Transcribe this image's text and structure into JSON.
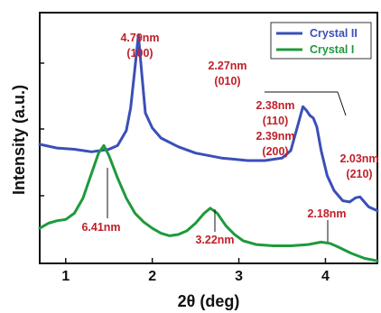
{
  "chart_data": {
    "type": "line",
    "title": "",
    "xlabel": "2θ (deg)",
    "ylabel": "Intensity (a.u.)",
    "xlim": [
      0.7,
      4.6
    ],
    "ylim": [
      0,
      1
    ],
    "x_ticks": [
      "1",
      "2",
      "3",
      "4"
    ],
    "x_tick_values": [
      1,
      2,
      3,
      4
    ],
    "grid": false,
    "legend_position": "top-right",
    "series": [
      {
        "name": "Crystal II",
        "color": "#3b4fb8",
        "x": [
          0.7,
          0.9,
          1.1,
          1.3,
          1.5,
          1.6,
          1.7,
          1.75,
          1.8,
          1.84,
          1.88,
          1.92,
          2.0,
          2.1,
          2.3,
          2.5,
          2.8,
          3.1,
          3.3,
          3.5,
          3.6,
          3.68,
          3.74,
          3.78,
          3.82,
          3.86,
          3.9,
          3.95,
          4.02,
          4.1,
          4.2,
          4.28,
          4.35,
          4.4,
          4.45,
          4.5,
          4.6
        ],
        "y": [
          0.475,
          0.46,
          0.455,
          0.445,
          0.455,
          0.47,
          0.53,
          0.62,
          0.78,
          0.91,
          0.75,
          0.6,
          0.54,
          0.5,
          0.465,
          0.44,
          0.42,
          0.41,
          0.41,
          0.42,
          0.45,
          0.55,
          0.625,
          0.61,
          0.59,
          0.58,
          0.545,
          0.45,
          0.35,
          0.29,
          0.25,
          0.245,
          0.262,
          0.265,
          0.245,
          0.225,
          0.21
        ]
      },
      {
        "name": "Crystal I",
        "color": "#1e9a3c",
        "x": [
          0.7,
          0.8,
          0.9,
          1.0,
          1.1,
          1.2,
          1.3,
          1.38,
          1.44,
          1.5,
          1.6,
          1.7,
          1.8,
          1.9,
          2.0,
          2.1,
          2.2,
          2.3,
          2.4,
          2.5,
          2.6,
          2.67,
          2.75,
          2.85,
          2.95,
          3.05,
          3.2,
          3.4,
          3.6,
          3.8,
          3.95,
          4.05,
          4.15,
          4.3,
          4.45,
          4.6
        ],
        "y": [
          0.14,
          0.16,
          0.17,
          0.175,
          0.2,
          0.26,
          0.36,
          0.44,
          0.47,
          0.43,
          0.34,
          0.26,
          0.2,
          0.165,
          0.14,
          0.12,
          0.11,
          0.115,
          0.13,
          0.16,
          0.2,
          0.22,
          0.2,
          0.15,
          0.115,
          0.09,
          0.075,
          0.07,
          0.07,
          0.075,
          0.085,
          0.08,
          0.065,
          0.04,
          0.02,
          0.01
        ]
      }
    ],
    "annotations": [
      {
        "id": "a1",
        "text": "4.79nm",
        "color": "#c0202a"
      },
      {
        "id": "a2",
        "text": "(100)",
        "color": "#c0202a"
      },
      {
        "id": "a3",
        "text": "2.27nm",
        "color": "#c0202a"
      },
      {
        "id": "a4",
        "text": "(010)",
        "color": "#c0202a"
      },
      {
        "id": "a5",
        "text": "2.38nm",
        "color": "#c0202a"
      },
      {
        "id": "a6",
        "text": "(110)",
        "color": "#c0202a"
      },
      {
        "id": "a7",
        "text": "2.39nm",
        "color": "#c0202a"
      },
      {
        "id": "a8",
        "text": "(200)",
        "color": "#c0202a"
      },
      {
        "id": "a9",
        "text": "2.03nm",
        "color": "#c0202a"
      },
      {
        "id": "a10",
        "text": "(210)",
        "color": "#c0202a"
      },
      {
        "id": "a11",
        "text": "6.41nm",
        "color": "#c0202a"
      },
      {
        "id": "a12",
        "text": "3.22nm",
        "color": "#c0202a"
      },
      {
        "id": "a13",
        "text": "2.18nm",
        "color": "#c0202a"
      }
    ]
  }
}
